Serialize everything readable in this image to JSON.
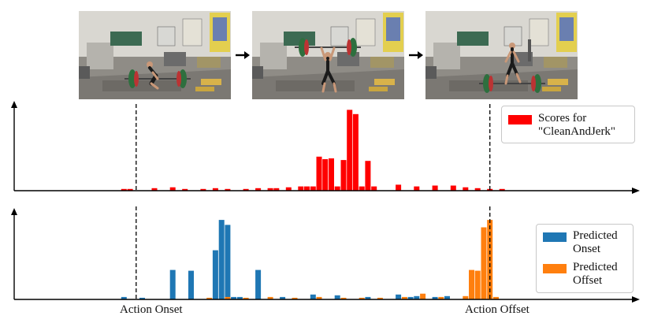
{
  "frames": [
    {
      "name": "frame-1-lift-start"
    },
    {
      "name": "frame-2-overhead"
    },
    {
      "name": "frame-3-walk-away"
    }
  ],
  "colors": {
    "scores": "#ff0000",
    "onset": "#1f77b4",
    "offset": "#ff7f0e",
    "axis": "#000000"
  },
  "chart_data": [
    {
      "type": "bar",
      "title": "",
      "legend": {
        "position": "top-right",
        "entries": [
          "Scores for\n\"CleanAndJerk\""
        ]
      },
      "xlim": [
        0,
        100
      ],
      "ylim": [
        0,
        1
      ],
      "markers": [
        {
          "label": "Action Onset",
          "x": 20
        },
        {
          "label": "Action Offset",
          "x": 78
        }
      ],
      "series": [
        {
          "name": "Scores for\n\"CleanAndJerk\"",
          "x": [
            18,
            19,
            23,
            26,
            28,
            31,
            33,
            35,
            38,
            40,
            42,
            43,
            45,
            47,
            48,
            49,
            50,
            51,
            52,
            53,
            54,
            55,
            56,
            57,
            58,
            59,
            63,
            66,
            69,
            72,
            74,
            76,
            78,
            80
          ],
          "values": [
            0.02,
            0.02,
            0.03,
            0.04,
            0.02,
            0.02,
            0.03,
            0.02,
            0.02,
            0.03,
            0.03,
            0.03,
            0.04,
            0.05,
            0.05,
            0.05,
            0.4,
            0.37,
            0.38,
            0.05,
            0.36,
            0.95,
            0.9,
            0.05,
            0.35,
            0.05,
            0.07,
            0.05,
            0.06,
            0.06,
            0.04,
            0.03,
            0.02,
            0.02
          ]
        }
      ]
    },
    {
      "type": "bar",
      "title": "",
      "legend": {
        "position": "top-right",
        "entries": [
          "Predicted\nOnset",
          "Predicted\nOffset"
        ]
      },
      "xlim": [
        0,
        100
      ],
      "ylim": [
        0,
        1
      ],
      "markers": [
        {
          "label": "Action Onset",
          "x": 20
        },
        {
          "label": "Action Offset",
          "x": 78
        }
      ],
      "series": [
        {
          "name": "Predicted\nOnset",
          "x": [
            18,
            21,
            26,
            29,
            33,
            34,
            35,
            36,
            37,
            40,
            44,
            49,
            53,
            58,
            63,
            65,
            66,
            69,
            71
          ],
          "values": [
            0.03,
            0.02,
            0.36,
            0.35,
            0.6,
            0.97,
            0.91,
            0.03,
            0.03,
            0.36,
            0.03,
            0.06,
            0.05,
            0.03,
            0.06,
            0.03,
            0.04,
            0.03,
            0.04
          ]
        },
        {
          "name": "Predicted\nOffset",
          "x": [
            32,
            35,
            38,
            42,
            46,
            50,
            54,
            57,
            60,
            64,
            67,
            70,
            74,
            75,
            76,
            77,
            78,
            79
          ],
          "values": [
            0.02,
            0.03,
            0.02,
            0.03,
            0.02,
            0.03,
            0.02,
            0.02,
            0.02,
            0.03,
            0.07,
            0.03,
            0.04,
            0.36,
            0.35,
            0.88,
            0.97,
            0.03
          ]
        }
      ]
    }
  ]
}
